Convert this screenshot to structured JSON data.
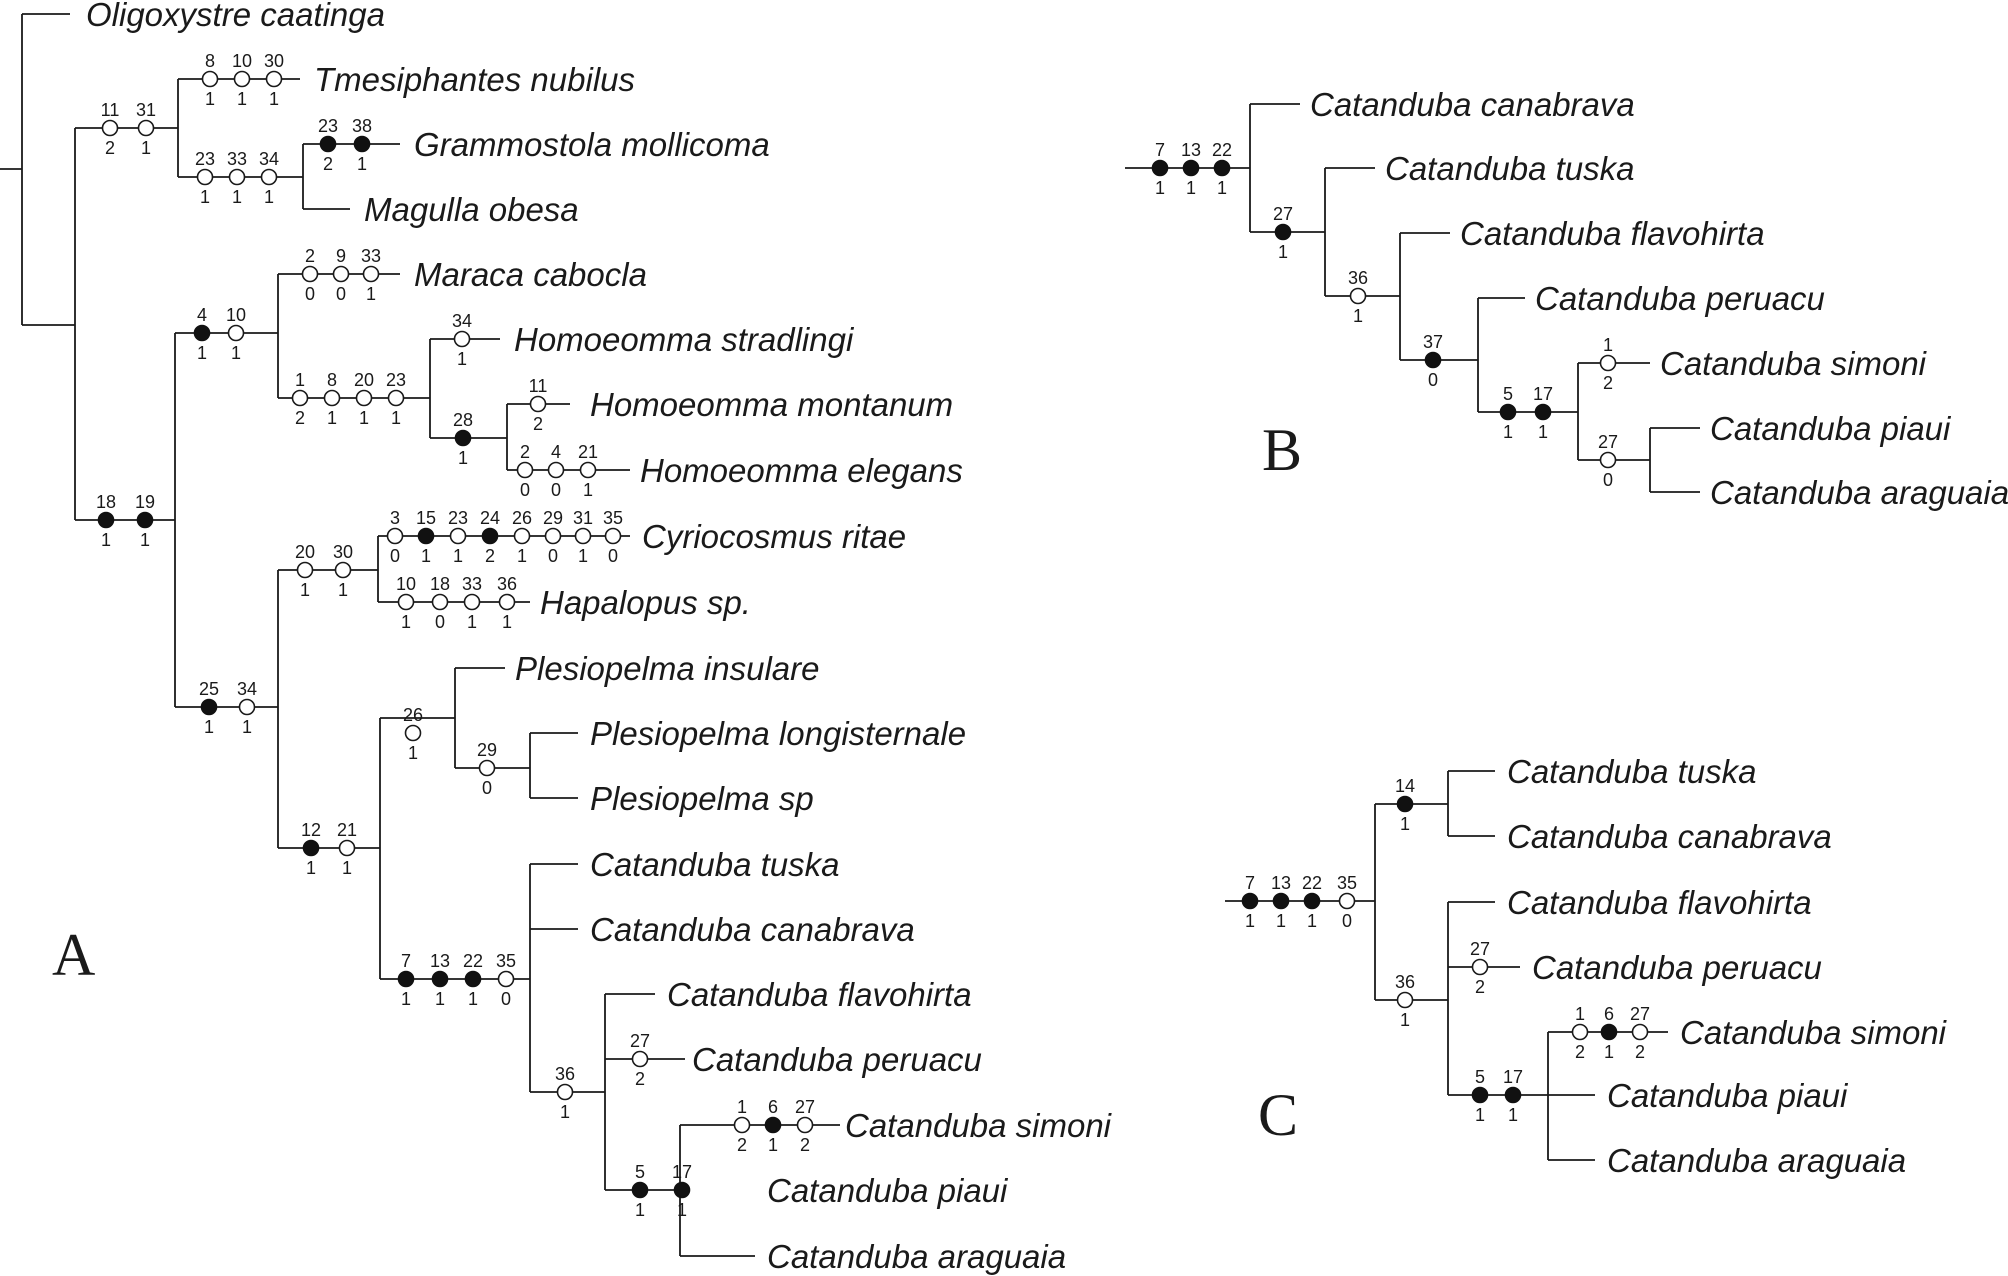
{
  "panels": [
    {
      "label": "A",
      "taxa": [
        "Oligoxystre caatinga",
        "Tmesiphantes nubilus",
        "Grammostola mollicoma",
        "Magulla obesa",
        "Maraca cabocla",
        "Homoeomma stradlingi",
        "Homoeomma montanum",
        "Homoeomma elegans",
        "Cyriocosmus ritae",
        "Hapalopus sp.",
        "Plesiopelma insulare",
        "Plesiopelma longisternale",
        "Plesiopelma sp",
        "Catanduba tuska",
        "Catanduba canabrava",
        "Catanduba flavohirta",
        "Catanduba peruacu",
        "Catanduba simoni",
        "Catanduba piaui",
        "Catanduba araguaia"
      ],
      "characters": [
        {
          "char": "11",
          "state": "2",
          "type": "homoplastic"
        },
        {
          "char": "31",
          "state": "1",
          "type": "homoplastic"
        },
        {
          "char": "8",
          "state": "1",
          "type": "homoplastic"
        },
        {
          "char": "10",
          "state": "1",
          "type": "homoplastic"
        },
        {
          "char": "30",
          "state": "1",
          "type": "homoplastic"
        },
        {
          "char": "23",
          "state": "1",
          "type": "homoplastic"
        },
        {
          "char": "33",
          "state": "1",
          "type": "homoplastic"
        },
        {
          "char": "34",
          "state": "1",
          "type": "homoplastic"
        },
        {
          "char": "23",
          "state": "2",
          "type": "synapomorphy"
        },
        {
          "char": "38",
          "state": "1",
          "type": "synapomorphy"
        },
        {
          "char": "18",
          "state": "1",
          "type": "synapomorphy"
        },
        {
          "char": "19",
          "state": "1",
          "type": "synapomorphy"
        },
        {
          "char": "4",
          "state": "1",
          "type": "synapomorphy"
        },
        {
          "char": "10",
          "state": "1",
          "type": "homoplastic"
        },
        {
          "char": "2",
          "state": "0",
          "type": "homoplastic"
        },
        {
          "char": "9",
          "state": "0",
          "type": "homoplastic"
        },
        {
          "char": "33",
          "state": "1",
          "type": "homoplastic"
        },
        {
          "char": "1",
          "state": "2",
          "type": "homoplastic"
        },
        {
          "char": "8",
          "state": "1",
          "type": "homoplastic"
        },
        {
          "char": "20",
          "state": "1",
          "type": "homoplastic"
        },
        {
          "char": "23",
          "state": "1",
          "type": "homoplastic"
        },
        {
          "char": "34",
          "state": "1",
          "type": "homoplastic"
        },
        {
          "char": "28",
          "state": "1",
          "type": "synapomorphy"
        },
        {
          "char": "11",
          "state": "2",
          "type": "homoplastic"
        },
        {
          "char": "2",
          "state": "0",
          "type": "homoplastic"
        },
        {
          "char": "4",
          "state": "0",
          "type": "homoplastic"
        },
        {
          "char": "21",
          "state": "1",
          "type": "homoplastic"
        },
        {
          "char": "25",
          "state": "1",
          "type": "synapomorphy"
        },
        {
          "char": "34",
          "state": "1",
          "type": "homoplastic"
        },
        {
          "char": "20",
          "state": "1",
          "type": "homoplastic"
        },
        {
          "char": "30",
          "state": "1",
          "type": "homoplastic"
        },
        {
          "char": "3",
          "state": "0",
          "type": "homoplastic"
        },
        {
          "char": "15",
          "state": "1",
          "type": "synapomorphy"
        },
        {
          "char": "23",
          "state": "1",
          "type": "homoplastic"
        },
        {
          "char": "24",
          "state": "2",
          "type": "synapomorphy"
        },
        {
          "char": "26",
          "state": "1",
          "type": "homoplastic"
        },
        {
          "char": "29",
          "state": "0",
          "type": "homoplastic"
        },
        {
          "char": "31",
          "state": "1",
          "type": "homoplastic"
        },
        {
          "char": "35",
          "state": "0",
          "type": "homoplastic"
        },
        {
          "char": "10",
          "state": "1",
          "type": "homoplastic"
        },
        {
          "char": "18",
          "state": "0",
          "type": "homoplastic"
        },
        {
          "char": "33",
          "state": "1",
          "type": "homoplastic"
        },
        {
          "char": "36",
          "state": "1",
          "type": "homoplastic"
        },
        {
          "char": "12",
          "state": "1",
          "type": "synapomorphy"
        },
        {
          "char": "21",
          "state": "1",
          "type": "homoplastic"
        },
        {
          "char": "26",
          "state": "1",
          "type": "homoplastic"
        },
        {
          "char": "29",
          "state": "0",
          "type": "homoplastic"
        },
        {
          "char": "7",
          "state": "1",
          "type": "synapomorphy"
        },
        {
          "char": "13",
          "state": "1",
          "type": "synapomorphy"
        },
        {
          "char": "22",
          "state": "1",
          "type": "synapomorphy"
        },
        {
          "char": "35",
          "state": "0",
          "type": "homoplastic"
        },
        {
          "char": "36",
          "state": "1",
          "type": "homoplastic"
        },
        {
          "char": "27",
          "state": "2",
          "type": "homoplastic"
        },
        {
          "char": "5",
          "state": "1",
          "type": "synapomorphy"
        },
        {
          "char": "17",
          "state": "1",
          "type": "synapomorphy"
        },
        {
          "char": "1",
          "state": "2",
          "type": "homoplastic"
        },
        {
          "char": "6",
          "state": "1",
          "type": "synapomorphy"
        },
        {
          "char": "27",
          "state": "2",
          "type": "homoplastic"
        }
      ]
    },
    {
      "label": "B",
      "taxa": [
        "Catanduba canabrava",
        "Catanduba tuska",
        "Catanduba flavohirta",
        "Catanduba peruacu",
        "Catanduba simoni",
        "Catanduba piaui",
        "Catanduba araguaia"
      ],
      "characters": [
        {
          "char": "7",
          "state": "1",
          "type": "synapomorphy"
        },
        {
          "char": "13",
          "state": "1",
          "type": "synapomorphy"
        },
        {
          "char": "22",
          "state": "1",
          "type": "synapomorphy"
        },
        {
          "char": "27",
          "state": "1",
          "type": "synapomorphy"
        },
        {
          "char": "36",
          "state": "1",
          "type": "homoplastic"
        },
        {
          "char": "37",
          "state": "0",
          "type": "synapomorphy"
        },
        {
          "char": "5",
          "state": "1",
          "type": "synapomorphy"
        },
        {
          "char": "17",
          "state": "1",
          "type": "synapomorphy"
        },
        {
          "char": "1",
          "state": "2",
          "type": "homoplastic"
        },
        {
          "char": "27",
          "state": "0",
          "type": "homoplastic"
        }
      ]
    },
    {
      "label": "C",
      "taxa": [
        "Catanduba tuska",
        "Catanduba canabrava",
        "Catanduba flavohirta",
        "Catanduba peruacu",
        "Catanduba simoni",
        "Catanduba piaui",
        "Catanduba araguaia"
      ],
      "characters": [
        {
          "char": "7",
          "state": "1",
          "type": "synapomorphy"
        },
        {
          "char": "13",
          "state": "1",
          "type": "synapomorphy"
        },
        {
          "char": "22",
          "state": "1",
          "type": "synapomorphy"
        },
        {
          "char": "35",
          "state": "0",
          "type": "homoplastic"
        },
        {
          "char": "14",
          "state": "1",
          "type": "synapomorphy"
        },
        {
          "char": "36",
          "state": "1",
          "type": "homoplastic"
        },
        {
          "char": "27",
          "state": "2",
          "type": "homoplastic"
        },
        {
          "char": "5",
          "state": "1",
          "type": "synapomorphy"
        },
        {
          "char": "17",
          "state": "1",
          "type": "synapomorphy"
        },
        {
          "char": "1",
          "state": "2",
          "type": "homoplastic"
        },
        {
          "char": "6",
          "state": "1",
          "type": "synapomorphy"
        },
        {
          "char": "27",
          "state": "2",
          "type": "homoplastic"
        }
      ]
    }
  ]
}
